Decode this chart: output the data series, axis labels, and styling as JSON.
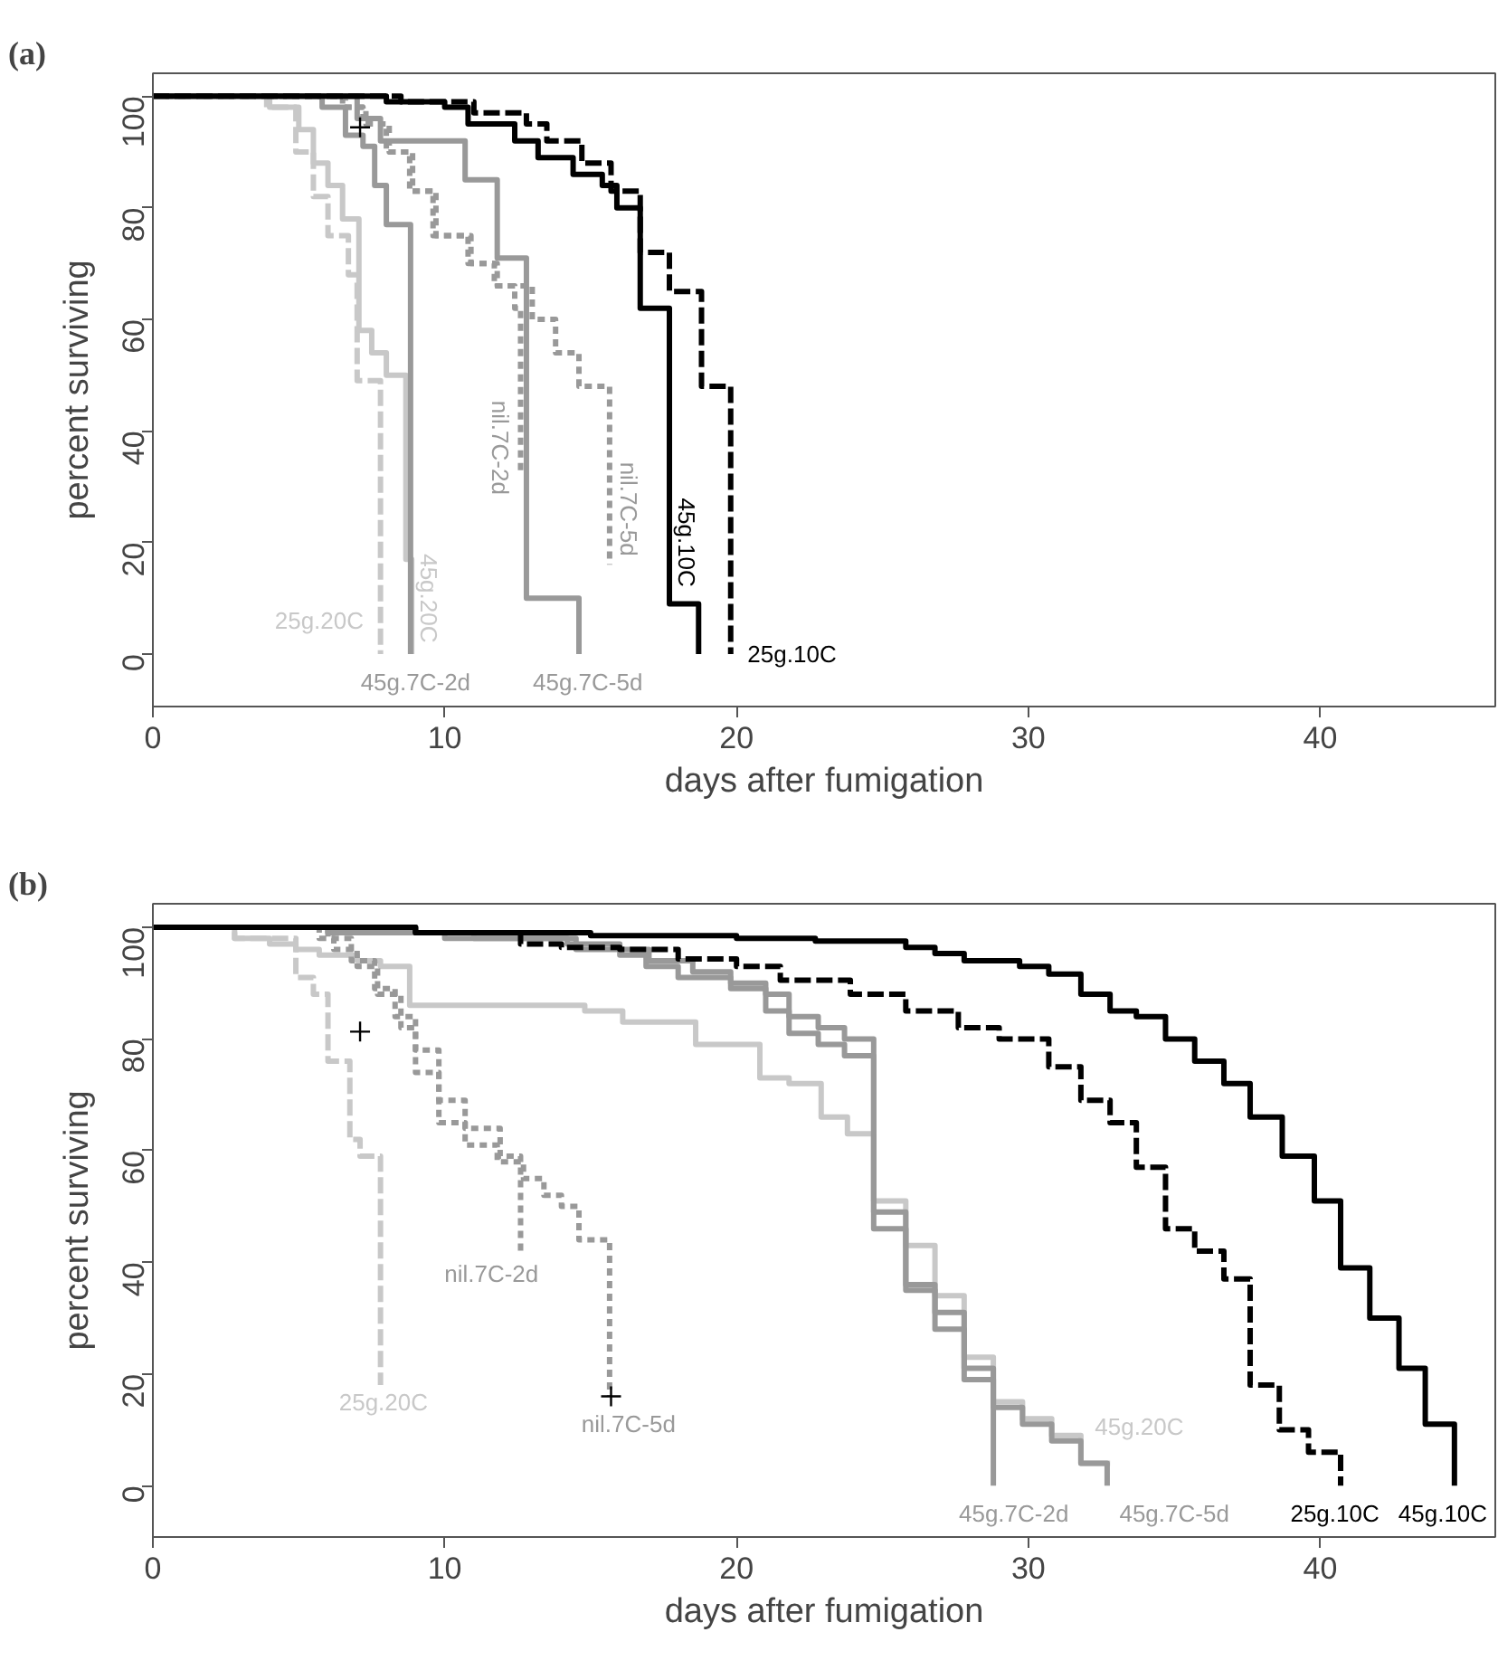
{
  "chart_data": [
    {
      "type": "step",
      "title": "(a)",
      "xlabel": "days after fumigation",
      "ylabel": "percent surviving",
      "xlim": [
        0,
        46
      ],
      "ylim": [
        -9.4,
        104.1
      ],
      "xticks": [
        0,
        10,
        20,
        30,
        40
      ],
      "yticks": [
        0,
        20,
        40,
        60,
        80,
        100
      ],
      "series": [
        {
          "name": "25g.20C",
          "color": "#c8c8c8",
          "line_style": "dashed",
          "x": [
            0,
            3.9,
            4.9,
            5.5,
            6.0,
            6.7,
            7.0,
            7.8
          ],
          "values": [
            100,
            98,
            90,
            82,
            75,
            68,
            49,
            0
          ]
        },
        {
          "name": "45g.20C",
          "color": "#c8c8c8",
          "line_style": "solid",
          "x": [
            0,
            4.0,
            5.0,
            5.5,
            6.0,
            6.5,
            7.06,
            7.5,
            8.0,
            8.67,
            8.87
          ],
          "values": [
            100,
            98,
            94,
            88,
            84,
            78,
            58,
            54,
            50,
            17,
            0
          ]
        },
        {
          "name": "45g.7C-2d",
          "color": "#999999",
          "line_style": "solid",
          "x": [
            0,
            5.8,
            6.6,
            7.2,
            7.6,
            8.0,
            8.83
          ],
          "values": [
            100,
            98,
            93,
            91,
            84,
            77,
            0
          ]
        },
        {
          "name": "nil.7C-2d",
          "color": "#999999",
          "line_style": "dotted",
          "x": [
            0,
            6.5,
            7.2,
            8.0,
            8.8,
            9.6,
            10.8,
            11.7,
            12.4,
            12.6
          ],
          "values": [
            100,
            98,
            95,
            90,
            83,
            75,
            70,
            66,
            62,
            32
          ]
        },
        {
          "name": "45g.7C-5d",
          "color": "#999999",
          "line_style": "solid",
          "x": [
            0,
            7.0,
            7.8,
            10.7,
            11.8,
            12.8,
            14.6
          ],
          "values": [
            100,
            96,
            92,
            85,
            71,
            10,
            0
          ]
        },
        {
          "name": "nil.7C-5d",
          "color": "#999999",
          "line_style": "dotted",
          "x": [
            0,
            6.6,
            7.3,
            8.1,
            8.9,
            9.7,
            10.9,
            11.8,
            13.0,
            13.8,
            14.6,
            15.65
          ],
          "values": [
            100,
            98,
            95,
            90,
            83,
            75,
            70,
            66,
            60,
            54,
            48,
            16
          ]
        },
        {
          "name": "45g.10C",
          "color": "#000000",
          "line_style": "solid",
          "x": [
            0,
            8.0,
            10.0,
            10.8,
            12.4,
            13.2,
            14.4,
            15.4,
            15.9,
            16.7,
            17.7,
            18.7
          ],
          "values": [
            100,
            99,
            98,
            95,
            92,
            89,
            86,
            84,
            80,
            62,
            9,
            0
          ]
        },
        {
          "name": "25g.10C",
          "color": "#000000",
          "line_style": "dashed",
          "x": [
            0,
            8.5,
            11.0,
            12.8,
            13.5,
            14.7,
            15.7,
            16.7,
            17.7,
            18.8,
            19.8
          ],
          "values": [
            100,
            99,
            97,
            95,
            92,
            88,
            83,
            72,
            65,
            48,
            0
          ]
        },
        {
          "type": "scatter",
          "marker": "cross",
          "color": "#000000",
          "x": [
            7.1
          ],
          "values": [
            94.4
          ]
        }
      ]
    },
    {
      "type": "step",
      "title": "(b)",
      "xlabel": "days after fumigation",
      "ylabel": "percent surviving",
      "xlim": [
        0,
        46
      ],
      "ylim": [
        -9.2,
        104.2
      ],
      "xticks": [
        0,
        10,
        20,
        30,
        40
      ],
      "yticks": [
        0,
        20,
        40,
        60,
        80,
        100
      ],
      "series": [
        {
          "name": "25g.20C",
          "color": "#c8c8c8",
          "line_style": "dashed",
          "x": [
            0,
            2.8,
            4.9,
            5.5,
            6.0,
            6.75,
            7.1,
            7.8
          ],
          "values": [
            100,
            98,
            91,
            88,
            76,
            62,
            59,
            18
          ]
        },
        {
          "name": "45g.20C",
          "color": "#c8c8c8",
          "line_style": "solid",
          "x": [
            0,
            2.8,
            4.0,
            4.9,
            5.7,
            7.0,
            7.8,
            8.8,
            14.8,
            16.1,
            18.6,
            20.8,
            21.8,
            22.9,
            23.8,
            24.7,
            25.8,
            26.8,
            27.8,
            28.8,
            29.8,
            30.8,
            31.8,
            32.8
          ],
          "values": [
            100,
            98,
            97,
            96,
            95,
            94,
            93,
            86,
            85,
            83,
            79,
            73,
            72,
            66,
            63,
            51,
            43,
            34,
            23,
            15,
            12,
            9,
            4,
            4
          ]
        },
        {
          "name": "45g.7C-2d",
          "color": "#999999",
          "line_style": "solid",
          "x": [
            0,
            6.0,
            10.0,
            14.2,
            16.0,
            16.9,
            18.0,
            19.8,
            21.0,
            21.8,
            22.8,
            23.7,
            24.7,
            25.8,
            26.8,
            27.8,
            28.8
          ],
          "values": [
            100,
            99,
            98,
            97,
            95,
            93,
            91,
            89,
            85,
            81,
            79,
            77,
            46,
            35,
            28,
            21,
            0
          ]
        },
        {
          "name": "nil.7C-2d",
          "color": "#999999",
          "line_style": "dotted",
          "x": [
            0,
            5.7,
            6.2,
            7.0,
            7.7,
            8.5,
            9.0,
            9.8,
            10.7,
            11.9,
            12.6
          ],
          "values": [
            100,
            98,
            96,
            93,
            88,
            82,
            74,
            69,
            64,
            59,
            42
          ]
        },
        {
          "name": "45g.7C-5d",
          "color": "#999999",
          "line_style": "solid",
          "x": [
            0,
            6.0,
            11.0,
            14.5,
            17.0,
            18.5,
            19.8,
            21.0,
            21.8,
            22.8,
            23.7,
            24.7,
            25.8,
            26.8,
            27.8,
            28.8,
            29.8,
            30.8,
            31.8,
            32.7
          ],
          "values": [
            100,
            99,
            98,
            96,
            94,
            92,
            90,
            88,
            84,
            82,
            80,
            49,
            36,
            31,
            19,
            14,
            11,
            8,
            4,
            0
          ]
        },
        {
          "name": "nil.7C-5d",
          "color": "#999999",
          "line_style": "dotted",
          "x": [
            0,
            6.0,
            6.8,
            7.6,
            8.3,
            9.0,
            9.8,
            10.7,
            11.8,
            12.7,
            13.4,
            14.0,
            14.6,
            15.65
          ],
          "values": [
            100,
            98,
            94,
            89,
            84,
            78,
            65,
            61,
            58,
            55,
            52,
            50,
            44,
            16
          ]
        },
        {
          "name": "45g.10C",
          "color": "#000000",
          "line_style": "solid",
          "x": [
            0,
            9.0,
            15.0,
            20.0,
            22.7,
            25.8,
            26.8,
            27.8,
            29.7,
            30.7,
            31.8,
            32.8,
            33.7,
            34.7,
            35.7,
            36.7,
            37.6,
            38.7,
            39.8,
            40.7,
            41.7,
            42.7,
            43.6,
            44.6
          ],
          "values": [
            100,
            99,
            98.5,
            98,
            97.5,
            96.4,
            95.3,
            94,
            93,
            91.6,
            88,
            85,
            84,
            80,
            76,
            72,
            66,
            59,
            51,
            39,
            30,
            21,
            11,
            0
          ]
        },
        {
          "name": "25g.10C",
          "color": "#000000",
          "line_style": "dashed",
          "x": [
            0,
            9.0,
            12.6,
            14.0,
            16.0,
            18.0,
            20.0,
            21.5,
            23.9,
            25.8,
            27.6,
            29.0,
            30.7,
            31.8,
            32.8,
            33.7,
            34.7,
            35.7,
            36.7,
            37.6,
            38.6,
            39.6,
            40.7
          ],
          "values": [
            100,
            99,
            97,
            96.4,
            96,
            94.3,
            93,
            90.5,
            88,
            85,
            82,
            80,
            75,
            69,
            65,
            57,
            46,
            42,
            37,
            18,
            10,
            6,
            0
          ]
        },
        {
          "type": "scatter",
          "marker": "cross",
          "color": "#000000",
          "x": [
            7.1,
            15.7
          ],
          "values": [
            81.3,
            16
          ]
        }
      ]
    }
  ]
}
